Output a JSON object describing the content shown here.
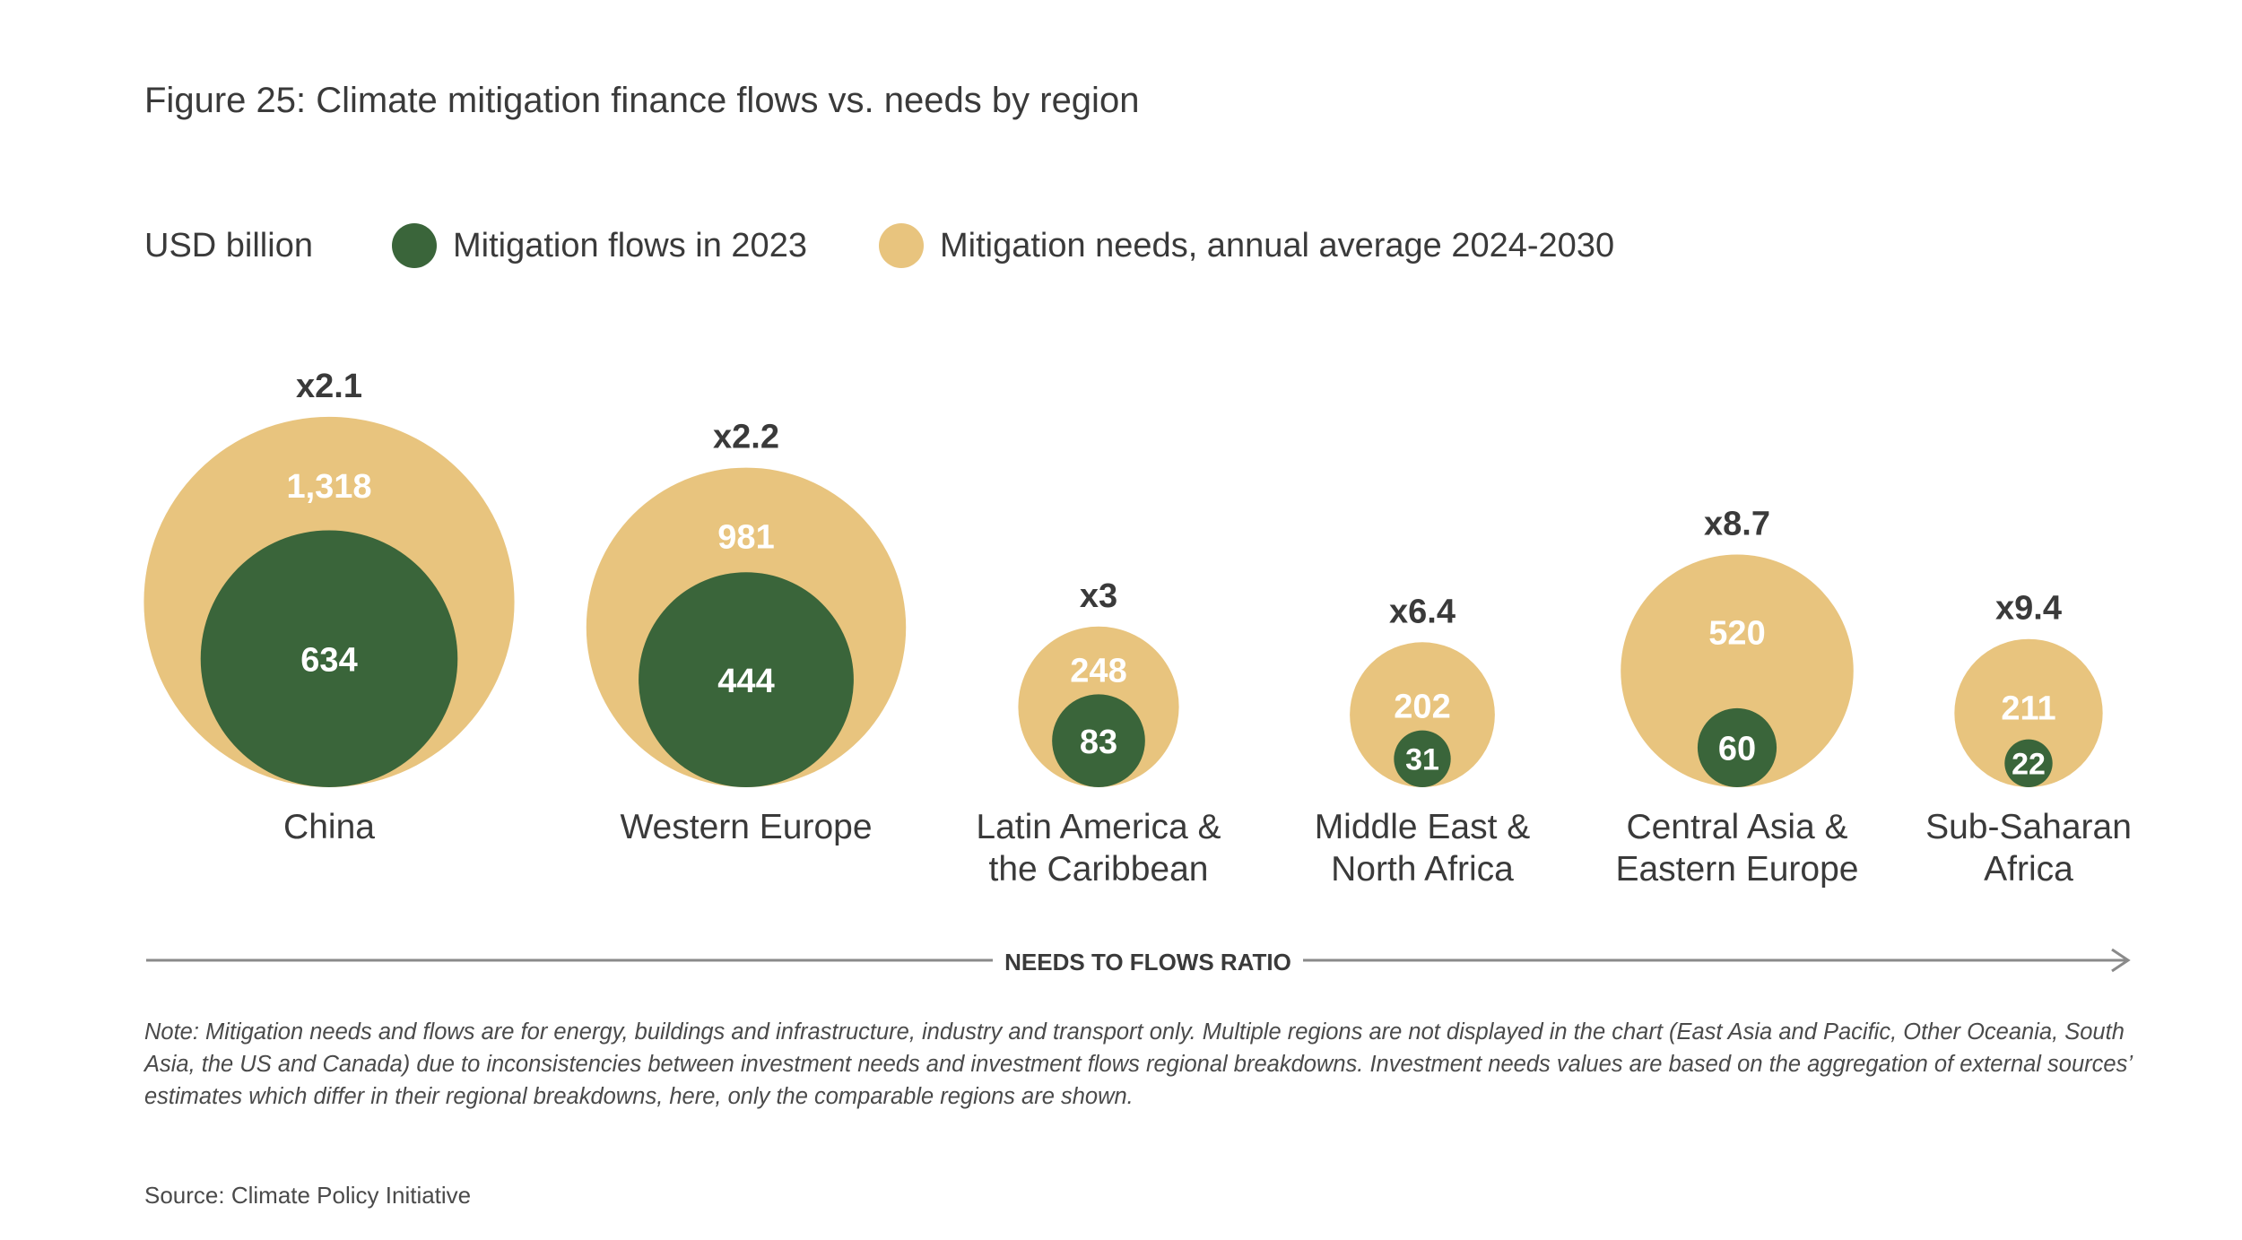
{
  "title": "Figure 25: Climate mitigation finance flows vs. needs by region",
  "legend": {
    "unit": "USD billion",
    "flows_label": "Mitigation flows in 2023",
    "needs_label": "Mitigation needs, annual average 2024-2030"
  },
  "colors": {
    "flows": "#3a653a",
    "needs": "#e8c47e",
    "ratio_text": "#3a3a3a",
    "axis": "#8a8a8a"
  },
  "axis_label": "NEEDS TO FLOWS RATIO",
  "note": "Note: Mitigation needs and flows are for energy, buildings and infrastructure, industry and transport only. Multiple regions are not displayed in the chart (East Asia and Pacific, Other Oceania, South Asia, the US and Canada) due to inconsistencies between investment needs and investment flows regional breakdowns. Investment needs values are based on the aggregation of external sources’ estimates which differ in their regional breakdowns, here, only the comparable regions are shown.",
  "source": "Source: Climate Policy Initiative",
  "chart_data": {
    "type": "bubble",
    "unit": "USD billion",
    "series": [
      {
        "name": "Mitigation flows in 2023",
        "values": [
          634,
          444,
          83,
          31,
          60,
          22
        ]
      },
      {
        "name": "Mitigation needs, annual average 2024-2030",
        "values": [
          1318,
          981,
          248,
          202,
          520,
          211
        ]
      }
    ],
    "regions": [
      {
        "label_lines": [
          "China"
        ],
        "flows": 634,
        "needs": 1318,
        "flows_label": "634",
        "needs_label": "1,318",
        "ratio": "x2.1"
      },
      {
        "label_lines": [
          "Western Europe"
        ],
        "flows": 444,
        "needs": 981,
        "flows_label": "444",
        "needs_label": "981",
        "ratio": "x2.2"
      },
      {
        "label_lines": [
          "Latin America &",
          "the Caribbean"
        ],
        "flows": 83,
        "needs": 248,
        "flows_label": "83",
        "needs_label": "248",
        "ratio": "x3"
      },
      {
        "label_lines": [
          "Middle East &",
          "North Africa"
        ],
        "flows": 31,
        "needs": 202,
        "flows_label": "31",
        "needs_label": "202",
        "ratio": "x6.4"
      },
      {
        "label_lines": [
          "Central Asia &",
          "Eastern Europe"
        ],
        "flows": 60,
        "needs": 520,
        "flows_label": "60",
        "needs_label": "520",
        "ratio": "x8.7"
      },
      {
        "label_lines": [
          "Sub-Saharan",
          "Africa"
        ],
        "flows": 22,
        "needs": 211,
        "flows_label": "22",
        "needs_label": "211",
        "ratio": "x9.4"
      }
    ]
  }
}
